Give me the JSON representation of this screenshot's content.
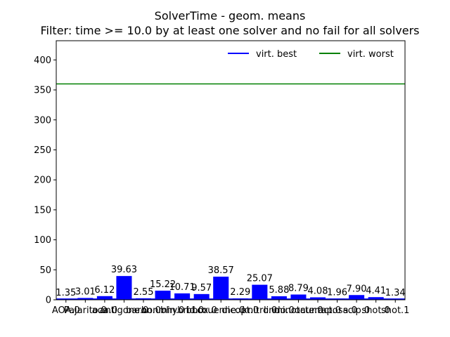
{
  "chart_data": {
    "type": "bar",
    "title": "SolverTime - geom. means",
    "subtitle": "Filter: time >= 10.0 by at least one solver and no fail for all solvers",
    "xlabel": "",
    "ylabel": "",
    "ylim": [
      0,
      432
    ],
    "yticks": [
      0,
      50,
      100,
      150,
      200,
      250,
      300,
      350,
      400
    ],
    "grid": false,
    "legend_position": "top-right",
    "categories": [
      "AOP.0",
      "Pajarito.0",
      "aoa.0",
      "antigone.0",
      "baron.0",
      "bonmin.0",
      "bhybrid.0",
      "bbox.0",
      "couenne.0",
      "dicopt.0",
      "knitro.0",
      "lindo.0",
      "minlp.0",
      "octeract.0",
      "raposa.0",
      "scip.0",
      "shot.0",
      "shot.1"
    ],
    "tick_labels": [
      "AOA.0",
      "Pajarito.0",
      "aoa.0",
      "antigone.0",
      "baron.0",
      "bonmin.0",
      "bhybrid.0",
      "bbox.0",
      "couenne.0",
      "dicopt.0",
      "knitro.0",
      "lindo.0",
      "minotaur.0",
      "octeract.0",
      "raposa.0",
      "scip.0",
      "shot.0",
      "shot.1"
    ],
    "values": [
      1.35,
      3.01,
      6.12,
      39.63,
      2.55,
      15.22,
      10.71,
      9.57,
      38.57,
      2.29,
      25.07,
      5.88,
      8.79,
      4.08,
      1.96,
      7.9,
      4.41,
      1.34
    ],
    "value_labels": [
      "1.35",
      "3.01",
      "6.12",
      "39.63",
      "2.55",
      "15.22",
      "10.71",
      "9.57",
      "38.57",
      "2.29",
      "25.07",
      "5.88",
      "8.79",
      "4.08",
      "1.96",
      "7.90",
      "4.41",
      "1.34"
    ],
    "bar_color": "#0000ff",
    "reference_lines": [
      {
        "name": "virt. best",
        "value": 1.3,
        "color": "#0000ff"
      },
      {
        "name": "virt. worst",
        "value": 360,
        "color": "#008000"
      }
    ]
  }
}
